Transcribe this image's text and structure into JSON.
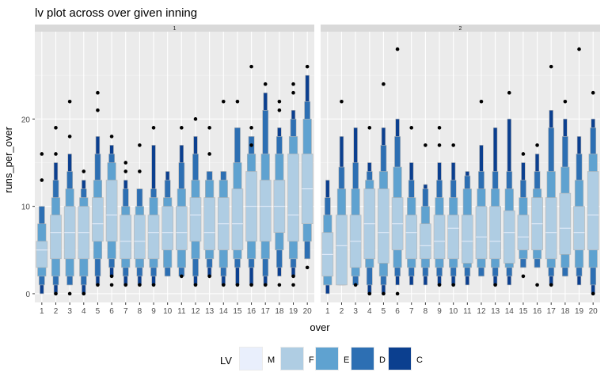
{
  "chart_data": {
    "type": "letter-value",
    "title": "lv plot across over given inning",
    "xlabel": "over",
    "ylabel": "runs_per_over",
    "ylim": [
      -1,
      30
    ],
    "yticks": [
      0,
      10,
      20
    ],
    "grid": true,
    "legend": {
      "title": "LV",
      "position": "bottom",
      "entries": [
        {
          "label": "M",
          "color": "#e9effc"
        },
        {
          "label": "F",
          "color": "#afcde3"
        },
        {
          "label": "E",
          "color": "#5fa2d0"
        },
        {
          "label": "D",
          "color": "#2d6fb3"
        },
        {
          "label": "C",
          "color": "#0b3f8f"
        }
      ]
    },
    "panels": [
      {
        "strip": "1",
        "overs": [
          {
            "over": "1",
            "median": 5,
            "F": [
              3,
              6
            ],
            "E": [
              2,
              8
            ],
            "D": [
              1,
              10
            ],
            "C": [
              0,
              10
            ],
            "outliers": [
              13,
              16
            ]
          },
          {
            "over": "2",
            "median": 7,
            "F": [
              4,
              9
            ],
            "E": [
              2,
              11
            ],
            "D": [
              1,
              13
            ],
            "C": [
              0,
              15
            ],
            "outliers": [
              0,
              16,
              19
            ]
          },
          {
            "over": "3",
            "median": 7,
            "F": [
              4,
              10
            ],
            "E": [
              2,
              12
            ],
            "D": [
              1,
              14
            ],
            "C": [
              1,
              16
            ],
            "outliers": [
              0,
              18,
              22
            ]
          },
          {
            "over": "4",
            "median": 7,
            "F": [
              4,
              10
            ],
            "E": [
              2,
              11
            ],
            "D": [
              1,
              12
            ],
            "C": [
              0,
              13
            ],
            "outliers": [
              0,
              14
            ]
          },
          {
            "over": "5",
            "median": 8,
            "F": [
              6,
              11
            ],
            "E": [
              4,
              13
            ],
            "D": [
              2,
              16
            ],
            "C": [
              1,
              18
            ],
            "outliers": [
              1,
              21,
              23
            ]
          },
          {
            "over": "6",
            "median": 9,
            "F": [
              6,
              13
            ],
            "E": [
              4,
              15
            ],
            "D": [
              3,
              16
            ],
            "C": [
              2,
              17
            ],
            "outliers": [
              1,
              2,
              18
            ]
          },
          {
            "over": "7",
            "median": 6,
            "F": [
              4,
              9
            ],
            "E": [
              3,
              10
            ],
            "D": [
              2,
              12
            ],
            "C": [
              1,
              13
            ],
            "outliers": [
              1,
              14,
              15
            ]
          },
          {
            "over": "8",
            "median": 6,
            "F": [
              4,
              9
            ],
            "E": [
              3,
              10
            ],
            "D": [
              2,
              12
            ],
            "C": [
              1,
              12
            ],
            "outliers": [
              1,
              14,
              17
            ]
          },
          {
            "over": "9",
            "median": 7,
            "F": [
              4,
              9
            ],
            "E": [
              3,
              11
            ],
            "D": [
              2,
              12
            ],
            "C": [
              1,
              17
            ],
            "outliers": [
              1,
              19
            ]
          },
          {
            "over": "10",
            "median": 7,
            "F": [
              5,
              10
            ],
            "E": [
              3,
              11
            ],
            "D": [
              2,
              13
            ],
            "C": [
              2,
              14
            ],
            "outliers": []
          },
          {
            "over": "11",
            "median": 7,
            "F": [
              5,
              10
            ],
            "E": [
              3,
              12
            ],
            "D": [
              2,
              15
            ],
            "C": [
              2,
              17
            ],
            "outliers": [
              2,
              19
            ]
          },
          {
            "over": "12",
            "median": 9,
            "F": [
              6,
              11
            ],
            "E": [
              4,
              13
            ],
            "D": [
              2,
              16
            ],
            "C": [
              1,
              18
            ],
            "outliers": [
              1,
              20
            ]
          },
          {
            "over": "13",
            "median": 7,
            "F": [
              5,
              11
            ],
            "E": [
              4,
              13
            ],
            "D": [
              3,
              14
            ],
            "C": [
              2,
              14
            ],
            "outliers": [
              2,
              16,
              19
            ]
          },
          {
            "over": "14",
            "median": 8,
            "F": [
              5,
              11
            ],
            "E": [
              3,
              13
            ],
            "D": [
              2,
              14
            ],
            "C": [
              1,
              14
            ],
            "outliers": [
              1,
              22
            ]
          },
          {
            "over": "15",
            "median": 8,
            "F": [
              5,
              12
            ],
            "E": [
              4,
              15
            ],
            "D": [
              3,
              19
            ],
            "C": [
              1,
              19
            ],
            "outliers": [
              1,
              22
            ]
          },
          {
            "over": "16",
            "median": 10,
            "F": [
              6,
              14
            ],
            "E": [
              4,
              16
            ],
            "D": [
              3,
              18
            ],
            "C": [
              1,
              18
            ],
            "outliers": [
              1,
              17,
              19,
              26
            ]
          },
          {
            "over": "17",
            "median": 10,
            "F": [
              6,
              13
            ],
            "E": [
              4,
              16
            ],
            "D": [
              2,
              21
            ],
            "C": [
              1,
              23
            ],
            "outliers": [
              1,
              24
            ]
          },
          {
            "over": "18",
            "median": 10,
            "F": [
              7,
              13
            ],
            "E": [
              5,
              16
            ],
            "D": [
              3,
              18
            ],
            "C": [
              2,
              19
            ],
            "outliers": [
              1,
              21,
              22
            ]
          },
          {
            "over": "19",
            "median": 9,
            "F": [
              6,
              16
            ],
            "E": [
              4,
              18
            ],
            "D": [
              3,
              20
            ],
            "C": [
              2,
              21
            ],
            "outliers": [
              1,
              2,
              23,
              24
            ]
          },
          {
            "over": "20",
            "median": 12,
            "F": [
              8,
              16
            ],
            "E": [
              6,
              20
            ],
            "D": [
              4,
              22
            ],
            "C": [
              4,
              25
            ],
            "outliers": [
              3,
              26
            ]
          }
        ]
      },
      {
        "strip": "2",
        "overs": [
          {
            "over": "1",
            "median": 4.5,
            "F": [
              2,
              7
            ],
            "E": [
              1,
              9
            ],
            "D": [
              1,
              11
            ],
            "C": [
              0,
              13
            ],
            "outliers": []
          },
          {
            "over": "2",
            "median": 5.5,
            "F": [
              1,
              9
            ],
            "E": [
              1,
              12
            ],
            "D": [
              1,
              14.5
            ],
            "C": [
              1,
              18
            ],
            "outliers": [
              22
            ]
          },
          {
            "over": "3",
            "median": 6,
            "F": [
              3,
              9
            ],
            "E": [
              2,
              12
            ],
            "D": [
              1,
              15
            ],
            "C": [
              1,
              19
            ],
            "outliers": [
              1
            ]
          },
          {
            "over": "4",
            "median": 8,
            "F": [
              4,
              12
            ],
            "E": [
              3,
              13
            ],
            "D": [
              1,
              14
            ],
            "C": [
              0,
              15
            ],
            "outliers": [
              0,
              19
            ]
          },
          {
            "over": "5",
            "median": 7,
            "F": [
              3.5,
              12
            ],
            "E": [
              2,
              14
            ],
            "D": [
              1,
              17
            ],
            "C": [
              0,
              19
            ],
            "outliers": [
              0,
              24
            ]
          },
          {
            "over": "6",
            "median": 8,
            "F": [
              5,
              11
            ],
            "E": [
              3,
              14.5
            ],
            "D": [
              2,
              18
            ],
            "C": [
              1,
              20
            ],
            "outliers": [
              0,
              28
            ]
          },
          {
            "over": "7",
            "median": 7,
            "F": [
              4,
              9
            ],
            "E": [
              3,
              11
            ],
            "D": [
              2,
              13
            ],
            "C": [
              1,
              15
            ],
            "outliers": [
              19
            ]
          },
          {
            "over": "8",
            "median": 5.5,
            "F": [
              4,
              8
            ],
            "E": [
              3,
              10
            ],
            "D": [
              2,
              12
            ],
            "C": [
              1,
              12.5
            ],
            "outliers": [
              17
            ]
          },
          {
            "over": "9",
            "median": 6,
            "F": [
              4,
              9
            ],
            "E": [
              3,
              11
            ],
            "D": [
              2,
              13
            ],
            "C": [
              1,
              15
            ],
            "outliers": [
              1,
              17,
              19
            ]
          },
          {
            "over": "10",
            "median": 7.5,
            "F": [
              4,
              9
            ],
            "E": [
              3,
              11
            ],
            "D": [
              2,
              13
            ],
            "C": [
              1,
              15
            ],
            "outliers": [
              1,
              17
            ]
          },
          {
            "over": "11",
            "median": 6,
            "F": [
              3.5,
              9
            ],
            "E": [
              3,
              12
            ],
            "D": [
              2,
              13.5
            ],
            "C": [
              1,
              14
            ],
            "outliers": []
          },
          {
            "over": "12",
            "median": 6.5,
            "F": [
              4,
              10
            ],
            "E": [
              3,
              12
            ],
            "D": [
              2,
              14
            ],
            "C": [
              2,
              17
            ],
            "outliers": [
              22
            ]
          },
          {
            "over": "13",
            "median": 6,
            "F": [
              4,
              10
            ],
            "E": [
              3,
              12
            ],
            "D": [
              2,
              14
            ],
            "C": [
              1,
              19
            ],
            "outliers": [
              1
            ]
          },
          {
            "over": "14",
            "median": 7,
            "F": [
              3.5,
              9.5
            ],
            "E": [
              3,
              12
            ],
            "D": [
              2,
              14
            ],
            "C": [
              1,
              20
            ],
            "outliers": [
              23
            ]
          },
          {
            "over": "15",
            "median": 6.5,
            "F": [
              5,
              9
            ],
            "E": [
              4,
              11
            ],
            "D": [
              3,
              13
            ],
            "C": [
              3,
              15
            ],
            "outliers": [
              2,
              16
            ]
          },
          {
            "over": "16",
            "median": 8,
            "F": [
              5,
              11
            ],
            "E": [
              4,
              12
            ],
            "D": [
              3,
              14
            ],
            "C": [
              3,
              16
            ],
            "outliers": [
              1,
              17
            ]
          },
          {
            "over": "17",
            "median": 7,
            "F": [
              4,
              11
            ],
            "E": [
              3,
              14
            ],
            "D": [
              2,
              19
            ],
            "C": [
              1,
              21
            ],
            "outliers": [
              1,
              26
            ]
          },
          {
            "over": "18",
            "median": 7.5,
            "F": [
              4.5,
              11.5
            ],
            "E": [
              3,
              14.5
            ],
            "D": [
              2,
              18
            ],
            "C": [
              2,
              20
            ],
            "outliers": [
              22
            ]
          },
          {
            "over": "19",
            "median": 7,
            "F": [
              5,
              10
            ],
            "E": [
              3,
              13
            ],
            "D": [
              2,
              16
            ],
            "C": [
              1,
              18
            ],
            "outliers": [
              28
            ]
          },
          {
            "over": "20",
            "median": 9,
            "F": [
              5,
              14
            ],
            "E": [
              3,
              16
            ],
            "D": [
              1,
              19
            ],
            "C": [
              0,
              20
            ],
            "outliers": [
              0,
              23
            ]
          }
        ]
      }
    ]
  }
}
